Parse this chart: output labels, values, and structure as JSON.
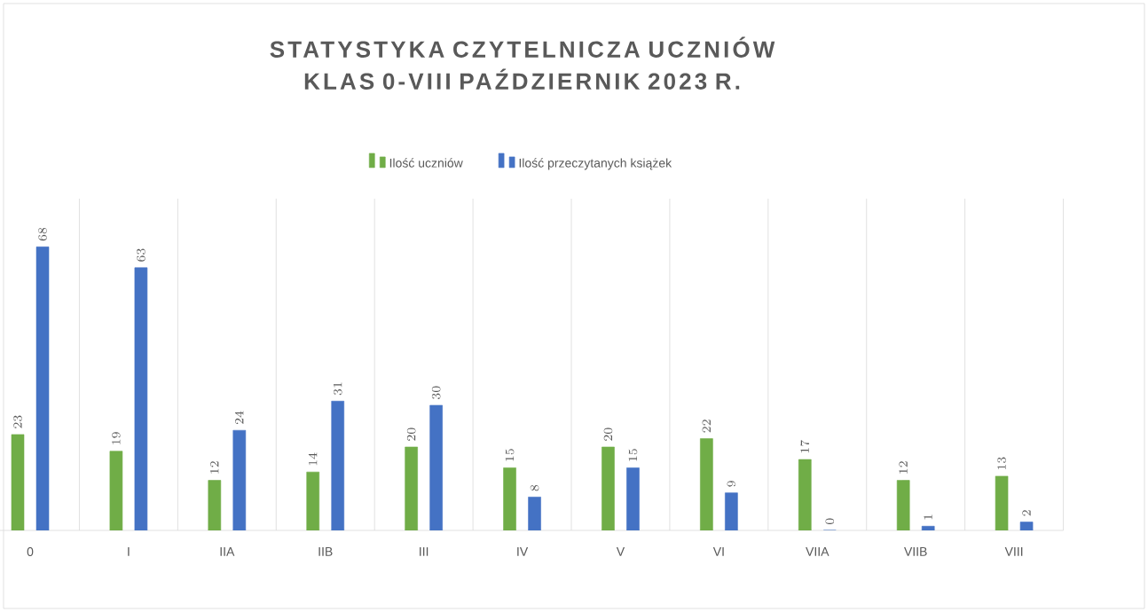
{
  "chart_data": {
    "type": "bar",
    "title": "STATYSTYKA CZYTELNICZA UCZNIÓW KLAS 0-VIII PAŹDZIERNIK 2023 R.",
    "categories": [
      "0",
      "I",
      "IIA",
      "IIB",
      "III",
      "IV",
      "V",
      "VI",
      "VIIA",
      "VIIB",
      "VIII"
    ],
    "series": [
      {
        "name": "Ilość uczniów",
        "color": "#70ad47",
        "values": [
          23,
          19,
          12,
          14,
          20,
          15,
          20,
          22,
          17,
          12,
          13
        ]
      },
      {
        "name": "Ilość przeczytanych książek",
        "color": "#4472c4",
        "values": [
          68,
          63,
          24,
          31,
          30,
          8,
          15,
          9,
          0,
          1,
          2
        ]
      }
    ],
    "data_labels": true,
    "grid": "x",
    "legend": "top"
  }
}
